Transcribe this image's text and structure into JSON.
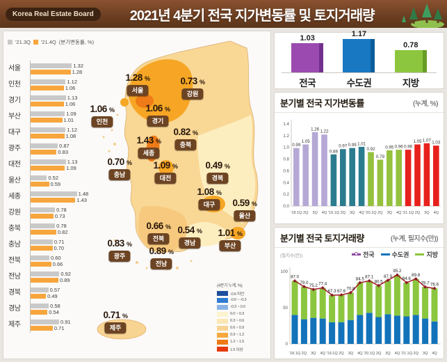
{
  "header": {
    "badge": "Korea Real Estate Board",
    "title": "2021년 4분기 전국 지가변동률 및 토지거래량"
  },
  "chart_data": [
    {
      "id": "regional_quarterly_change",
      "type": "bar",
      "orientation": "horizontal",
      "note": "(분기변동률, %)",
      "categories": [
        "서울",
        "인천",
        "경기",
        "부산",
        "대구",
        "광주",
        "대전",
        "울산",
        "세종",
        "강원",
        "충북",
        "충남",
        "전북",
        "전남",
        "경북",
        "경남",
        "제주"
      ],
      "series": [
        {
          "name": "'21.3Q",
          "color": "#c9c9c9",
          "values": [
            1.32,
            1.12,
            1.13,
            1.09,
            1.12,
            0.87,
            1.13,
            0.52,
            1.48,
            0.78,
            0.78,
            0.71,
            0.6,
            0.92,
            0.57,
            0.58,
            0.91
          ]
        },
        {
          "name": "'21.4Q",
          "color": "#f7a63d",
          "values": [
            1.28,
            1.06,
            1.06,
            1.01,
            1.08,
            0.83,
            1.09,
            0.59,
            1.43,
            0.73,
            0.82,
            0.7,
            0.66,
            0.89,
            0.49,
            0.54,
            0.71
          ]
        }
      ],
      "xlim": [
        0,
        1.6
      ]
    },
    {
      "id": "summary_by_area",
      "type": "bar",
      "categories": [
        "전국",
        "수도권",
        "지방"
      ],
      "values": [
        1.03,
        1.17,
        0.78
      ],
      "colors": [
        "#9b4ab0",
        "#1878c2",
        "#8cc63e"
      ],
      "side_colors": [
        "#73308e",
        "#0d5d9a",
        "#689e27"
      ]
    },
    {
      "id": "quarterly_rate",
      "type": "bar",
      "title": "분기별 전국 지가변동률",
      "note": "(누계, %)",
      "categories": [
        "'18.1Q",
        "2Q",
        "3Q",
        "4Q",
        "'19.1Q",
        "2Q",
        "3Q",
        "4Q",
        "'20.1Q",
        "2Q",
        "3Q",
        "4Q",
        "'21.1Q",
        "2Q",
        "3Q",
        "4Q"
      ],
      "values": [
        0.99,
        1.05,
        1.26,
        1.22,
        0.88,
        0.97,
        0.99,
        1.01,
        0.92,
        0.79,
        0.95,
        0.96,
        0.96,
        1.05,
        1.07,
        1.03
      ],
      "group_colors": [
        "#b5a8d5",
        "#2b7c8e",
        "#95c13e",
        "#e7211c"
      ],
      "ylim": [
        0,
        1.4
      ],
      "yticks": [
        0.0,
        0.2,
        0.4,
        0.6,
        0.8,
        1.0,
        1.2,
        1.4
      ]
    },
    {
      "id": "quarterly_transactions",
      "type": "combo",
      "title": "분기별 전국 토지거래량",
      "note": "(누계, 필지수(만))",
      "y_label": "(필지수(만))",
      "categories": [
        "'18.1Q",
        "2Q",
        "3Q",
        "4Q",
        "'19.1Q",
        "2Q",
        "3Q",
        "4Q",
        "'20.1Q",
        "2Q",
        "3Q",
        "4Q",
        "'21.1Q",
        "2Q",
        "3Q",
        "4Q"
      ],
      "total_line": {
        "name": "전국",
        "legend_color": "#8d4a9e",
        "line_color": "#a5242e",
        "values": [
          87.0,
          79.0,
          75.2,
          77.4,
          67.3,
          67.6,
          70.8,
          84.5,
          87.1,
          80.5,
          87.9,
          95.2,
          84.6,
          89.8,
          78.7,
          76.6
        ]
      },
      "stack_series": [
        {
          "name": "수도권",
          "color": "#1273ba",
          "values": [
            40,
            34,
            36,
            35,
            30,
            30,
            33,
            40,
            43,
            37,
            41,
            39,
            38,
            40,
            35,
            31
          ]
        },
        {
          "name": "지방",
          "color": "#8cc63f",
          "values": "total_minus_sudogwon"
        }
      ],
      "ylim": [
        0,
        100
      ],
      "yticks": [
        0,
        50,
        100
      ]
    },
    {
      "id": "map_change_rate",
      "type": "choropleth",
      "legend_title": "(4분기 누계, %)",
      "unit": "%",
      "regions": [
        {
          "name": "서울",
          "value": 1.28
        },
        {
          "name": "인천",
          "value": 1.06
        },
        {
          "name": "경기",
          "value": 1.06
        },
        {
          "name": "강원",
          "value": 0.73
        },
        {
          "name": "충북",
          "value": 0.82
        },
        {
          "name": "세종",
          "value": 1.43
        },
        {
          "name": "충남",
          "value": 0.7
        },
        {
          "name": "대전",
          "value": 1.09
        },
        {
          "name": "경북",
          "value": 0.49
        },
        {
          "name": "대구",
          "value": 1.08
        },
        {
          "name": "울산",
          "value": 0.59
        },
        {
          "name": "전북",
          "value": 0.66
        },
        {
          "name": "경남",
          "value": 0.54
        },
        {
          "name": "부산",
          "value": 1.01
        },
        {
          "name": "광주",
          "value": 0.83
        },
        {
          "name": "전남",
          "value": 0.89
        },
        {
          "name": "제주",
          "value": 0.71
        }
      ],
      "legend_items": [
        {
          "label": "-0.6 미만",
          "color": "#1d4f9f"
        },
        {
          "label": "-0.6 ~ -0.3",
          "color": "#2f7cd1"
        },
        {
          "label": "-0.3 ~ 0.0",
          "color": "#8ab4e8"
        },
        {
          "label": "0.0 ~ 0.3",
          "color": "#fdf3d0"
        },
        {
          "label": "0.3 ~ 0.6",
          "color": "#fbe7b3"
        },
        {
          "label": "0.6 ~ 0.9",
          "color": "#f8d492"
        },
        {
          "label": "0.9 ~ 1.2",
          "color": "#f5a93e"
        },
        {
          "label": "1.2 ~ 1.5",
          "color": "#ee7a16"
        },
        {
          "label": "1.5 이상",
          "color": "#e6390e"
        }
      ]
    }
  ]
}
